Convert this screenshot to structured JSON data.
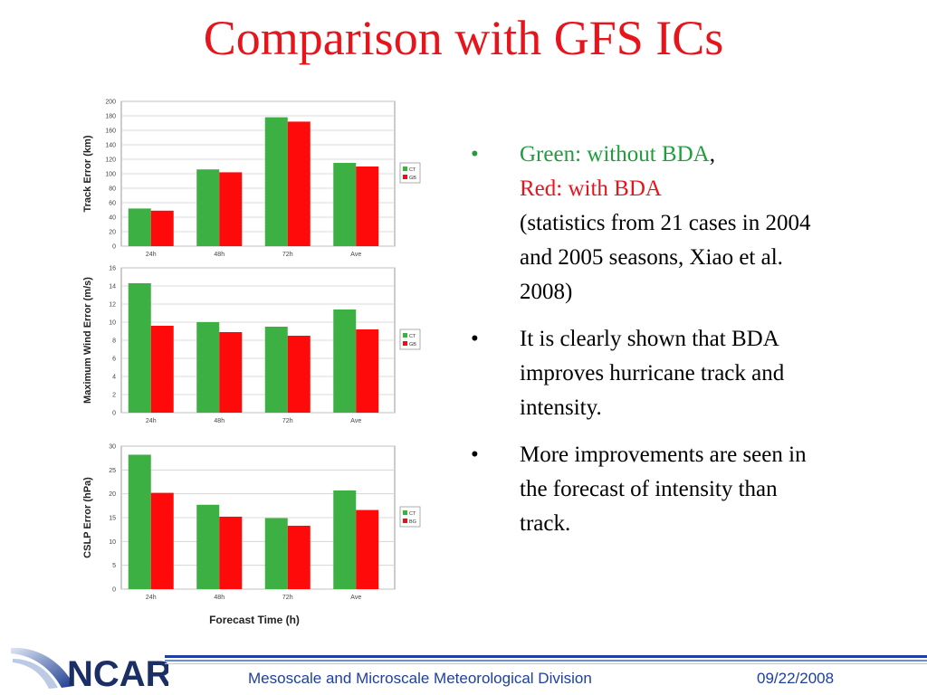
{
  "slide": {
    "title": "Comparison with GFS ICs",
    "bullets": {
      "b1_green": "Green: without BDA",
      "b1_comma": ",",
      "b1_red": "Red: with BDA",
      "b1_rest": "(statistics from 21 cases in 2004 and 2005 seasons, Xiao et al. 2008)",
      "b2": "It is clearly shown that BDA improves hurricane track and intensity.",
      "b3": "More improvements are seen in the forecast of intensity than track."
    },
    "bullet_symbol": "•",
    "footer": {
      "logo_text": "NCAR",
      "division": "Mesoscale and Microscale Meteorological Division",
      "date": "09/22/2008"
    }
  },
  "colors": {
    "ct": "#3cb043",
    "bda": "#ff0a0a",
    "title": "#e8141c",
    "footer": "#1d3fa0"
  },
  "chart_data": [
    {
      "type": "bar",
      "categories": [
        "24h",
        "48h",
        "72h",
        "Ave"
      ],
      "series": [
        {
          "name": "CT",
          "values": [
            52,
            106,
            178,
            115
          ]
        },
        {
          "name": "GB",
          "values": [
            49,
            102,
            172,
            110
          ]
        }
      ],
      "ylabel": "Track Error (km)",
      "xlabel": "",
      "ylim": [
        0,
        200
      ],
      "yticks": [
        0,
        20,
        40,
        60,
        80,
        100,
        120,
        140,
        160,
        180,
        200
      ],
      "grid": true,
      "legend": "right"
    },
    {
      "type": "bar",
      "categories": [
        "24h",
        "48h",
        "72h",
        "Ave"
      ],
      "series": [
        {
          "name": "CT",
          "values": [
            14.3,
            10.0,
            9.5,
            11.4
          ]
        },
        {
          "name": "GB",
          "values": [
            9.6,
            8.9,
            8.5,
            9.2
          ]
        }
      ],
      "ylabel": "Maximum Wind Error (m/s)",
      "xlabel": "",
      "ylim": [
        0,
        16
      ],
      "yticks": [
        0,
        2,
        4,
        6,
        8,
        10,
        12,
        14,
        16
      ],
      "grid": true,
      "legend": "right"
    },
    {
      "type": "bar",
      "categories": [
        "24h",
        "48h",
        "72h",
        "Ave"
      ],
      "series": [
        {
          "name": "CT",
          "values": [
            28.2,
            17.7,
            14.9,
            20.7
          ]
        },
        {
          "name": "BG",
          "values": [
            20.2,
            15.2,
            13.3,
            16.6
          ]
        }
      ],
      "ylabel": "CSLP Error (hPa)",
      "xlabel": "Forecast Time (h)",
      "ylim": [
        0,
        30
      ],
      "yticks": [
        0,
        5,
        10,
        15,
        20,
        25,
        30
      ],
      "grid": true,
      "legend": "right"
    }
  ]
}
